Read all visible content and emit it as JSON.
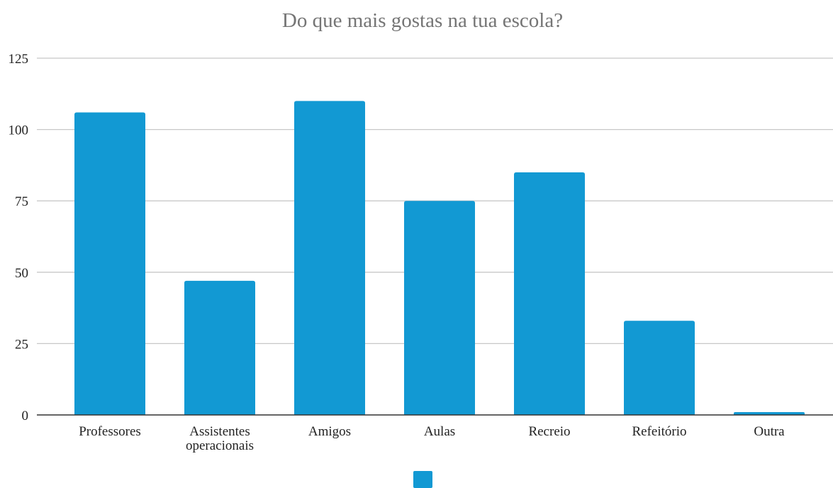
{
  "chart_data": {
    "type": "bar",
    "title": "Do que mais gostas na tua escola?",
    "xlabel": "",
    "ylabel": "",
    "categories": [
      "Professores",
      "Assistentes operacionais",
      "Amigos",
      "Aulas",
      "Recreio",
      "Refeitório",
      "Outra"
    ],
    "category_lines": [
      [
        "Professores"
      ],
      [
        "Assistentes",
        "operacionais"
      ],
      [
        "Amigos"
      ],
      [
        "Aulas"
      ],
      [
        "Recreio"
      ],
      [
        "Refeitório"
      ],
      [
        "Outra"
      ]
    ],
    "series": [
      {
        "values": [
          106,
          47,
          110,
          75,
          85,
          33,
          1
        ],
        "color": "#1299d3"
      }
    ],
    "ylim": [
      0,
      125
    ],
    "yticks": [
      0,
      25,
      50,
      75,
      100,
      125
    ],
    "ytick_labels": [
      "0",
      "25",
      "50",
      "75",
      "100",
      "125"
    ],
    "grid": true,
    "legend": "bottom"
  }
}
